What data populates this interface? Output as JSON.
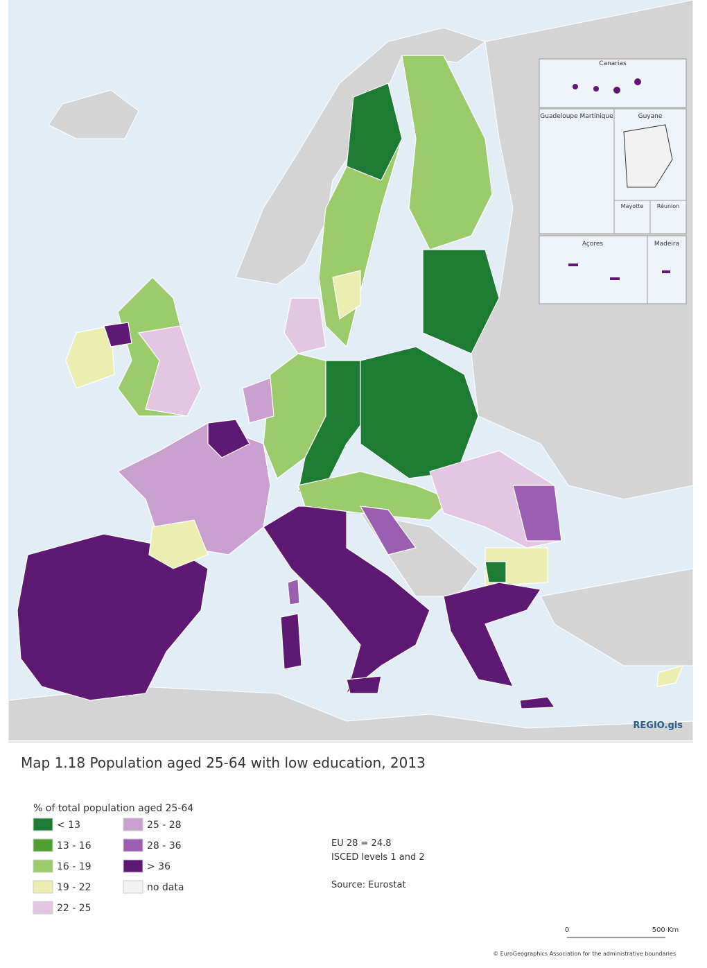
{
  "map": {
    "insets": {
      "canarias": "Canarias",
      "guadeloupe": "Guadeloupe Martinique",
      "guyane": "Guyane",
      "mayotte": "Mayotte",
      "reunion": "Réunion",
      "acores": "Açores",
      "madeira": "Madeira"
    },
    "brand": "REGIO.gis"
  },
  "title": "Map 1.18 Population aged 25-64 with low education, 2013",
  "legend": {
    "title": "% of total population aged 25-64",
    "items": [
      {
        "label": "< 13",
        "color": "#1e7b34"
      },
      {
        "label": "13 - 16",
        "color": "#4fa02e"
      },
      {
        "label": "16 - 19",
        "color": "#9ccb6b"
      },
      {
        "label": "19 - 22",
        "color": "#ebeeb0"
      },
      {
        "label": "22 - 25",
        "color": "#e2c6e2"
      },
      {
        "label": "25 - 28",
        "color": "#c9a0d0"
      },
      {
        "label": "28 - 36",
        "color": "#9b5eb0"
      },
      {
        "label": "> 36",
        "color": "#5e1a72"
      },
      {
        "label": "no data",
        "color": "#f2f2f2"
      }
    ]
  },
  "notes": {
    "eu": "EU 28 = 24.8",
    "isced": "ISCED levels 1 and 2",
    "source": "Source: Eurostat"
  },
  "scale": {
    "start": "0",
    "end": "500 Km"
  },
  "copyright": "© EuroGeographics Association for the administrative boundaries"
}
